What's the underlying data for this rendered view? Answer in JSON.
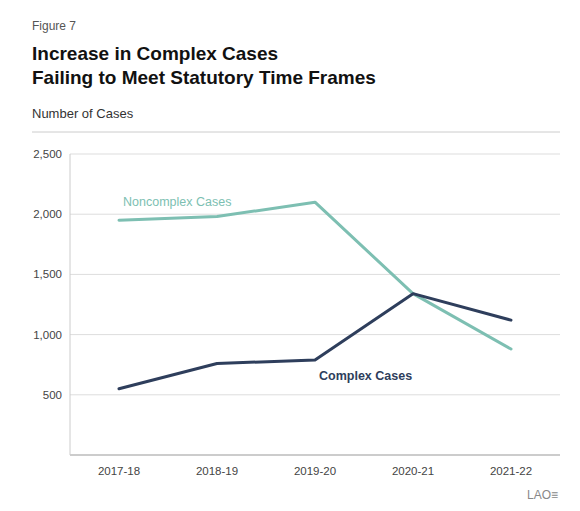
{
  "chart_data": {
    "type": "line",
    "title": "Increase in Complex Cases\nFailing to Meet Statutory Time Frames",
    "subtitle": "Number of Cases",
    "annotations": [
      "Figure 7",
      "LAO≡"
    ],
    "categories": [
      "2017-18",
      "2018-19",
      "2019-20",
      "2020-21",
      "2021-22"
    ],
    "series": [
      {
        "name": "Noncomplex Cases",
        "color": "#7dbfb2",
        "values": [
          1950,
          1980,
          2100,
          1340,
          880
        ]
      },
      {
        "name": "Complex Cases",
        "color": "#2e3e5c",
        "values": [
          550,
          760,
          790,
          1340,
          1120
        ]
      }
    ],
    "ylim": [
      0,
      2500
    ],
    "yticks": [
      500,
      {
        "value": 1000,
        "label": "1,000"
      },
      {
        "value": 1500,
        "label": "1,500"
      },
      {
        "value": 2000,
        "label": "2,000"
      },
      {
        "value": 2500,
        "label": "2,500"
      }
    ],
    "grid": true
  }
}
